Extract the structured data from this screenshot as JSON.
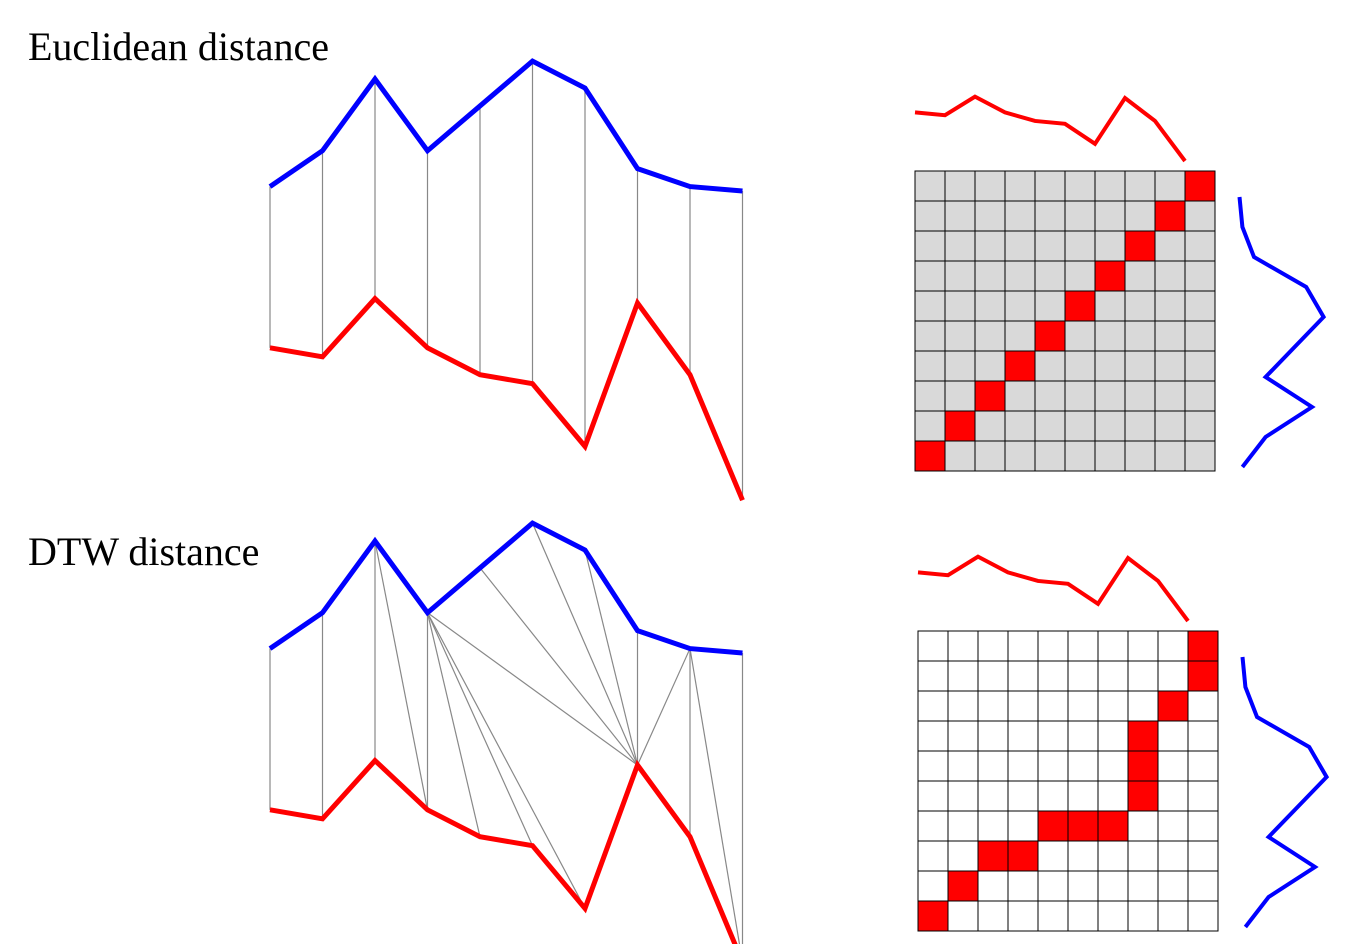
{
  "panels": [
    {
      "id": "euclidean",
      "title": "Euclidean distance",
      "matrix_background": "#d9d9d9",
      "path": [
        [
          0,
          0
        ],
        [
          1,
          1
        ],
        [
          2,
          2
        ],
        [
          3,
          3
        ],
        [
          4,
          4
        ],
        [
          5,
          5
        ],
        [
          6,
          6
        ],
        [
          7,
          7
        ],
        [
          8,
          8
        ],
        [
          9,
          9
        ]
      ],
      "alignment": [
        [
          0,
          0
        ],
        [
          1,
          1
        ],
        [
          2,
          2
        ],
        [
          3,
          3
        ],
        [
          4,
          4
        ],
        [
          5,
          5
        ],
        [
          6,
          6
        ],
        [
          7,
          7
        ],
        [
          8,
          8
        ],
        [
          9,
          9
        ]
      ]
    },
    {
      "id": "dtw",
      "title": "DTW distance",
      "matrix_background": "#ffffff",
      "path": [
        [
          0,
          0
        ],
        [
          1,
          1
        ],
        [
          2,
          2
        ],
        [
          3,
          2
        ],
        [
          4,
          3
        ],
        [
          5,
          3
        ],
        [
          6,
          3
        ],
        [
          7,
          4
        ],
        [
          7,
          5
        ],
        [
          7,
          6
        ],
        [
          8,
          7
        ],
        [
          9,
          8
        ],
        [
          9,
          9
        ]
      ],
      "alignment": [
        [
          0,
          0
        ],
        [
          1,
          1
        ],
        [
          2,
          2
        ],
        [
          2,
          3
        ],
        [
          3,
          3
        ],
        [
          3,
          4
        ],
        [
          3,
          5
        ],
        [
          3,
          6
        ],
        [
          3,
          7
        ],
        [
          4,
          7
        ],
        [
          5,
          7
        ],
        [
          6,
          7
        ],
        [
          7,
          7
        ],
        [
          8,
          7
        ],
        [
          8,
          8
        ],
        [
          8,
          9
        ],
        [
          9,
          9
        ]
      ]
    }
  ],
  "series": {
    "blue": {
      "color": "#0000ff",
      "values": [
        0.78,
        0.86,
        1.02,
        0.86,
        0.96,
        1.06,
        1.0,
        0.82,
        0.78,
        0.77
      ]
    },
    "red": {
      "color": "#ff0000",
      "values": [
        0.42,
        0.4,
        0.53,
        0.42,
        0.36,
        0.34,
        0.2,
        0.52,
        0.36,
        0.08
      ]
    }
  },
  "path_color": "#ff0000",
  "grid_size": 10
}
